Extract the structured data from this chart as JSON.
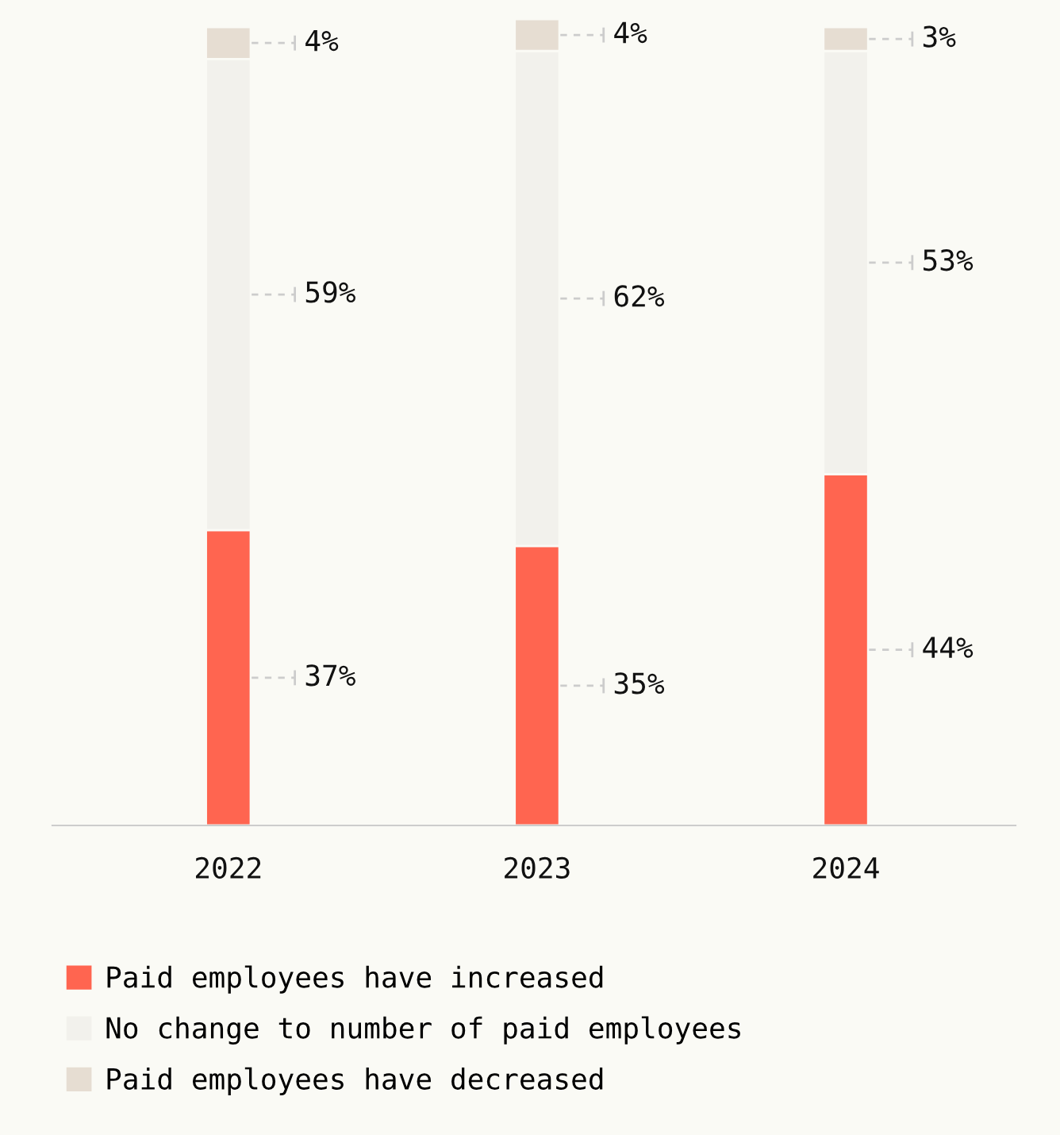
{
  "chart_data": {
    "type": "bar",
    "stacked": true,
    "categories": [
      "2022",
      "2023",
      "2024"
    ],
    "series": [
      {
        "name": "Paid employees have increased",
        "color": "#ff6550",
        "values": [
          37,
          35,
          44
        ],
        "value_labels": [
          "37%",
          "35%",
          "44%"
        ]
      },
      {
        "name": "No change to number of paid employees",
        "color": "#f2f1ec",
        "values": [
          59,
          62,
          53
        ],
        "value_labels": [
          "59%",
          "62%",
          "53%"
        ]
      },
      {
        "name": "Paid employees have decreased",
        "color": "#e6ddd2",
        "values": [
          4,
          4,
          3
        ],
        "value_labels": [
          "4%",
          "4%",
          "3%"
        ]
      }
    ],
    "legend": "bottom",
    "grid": false
  }
}
